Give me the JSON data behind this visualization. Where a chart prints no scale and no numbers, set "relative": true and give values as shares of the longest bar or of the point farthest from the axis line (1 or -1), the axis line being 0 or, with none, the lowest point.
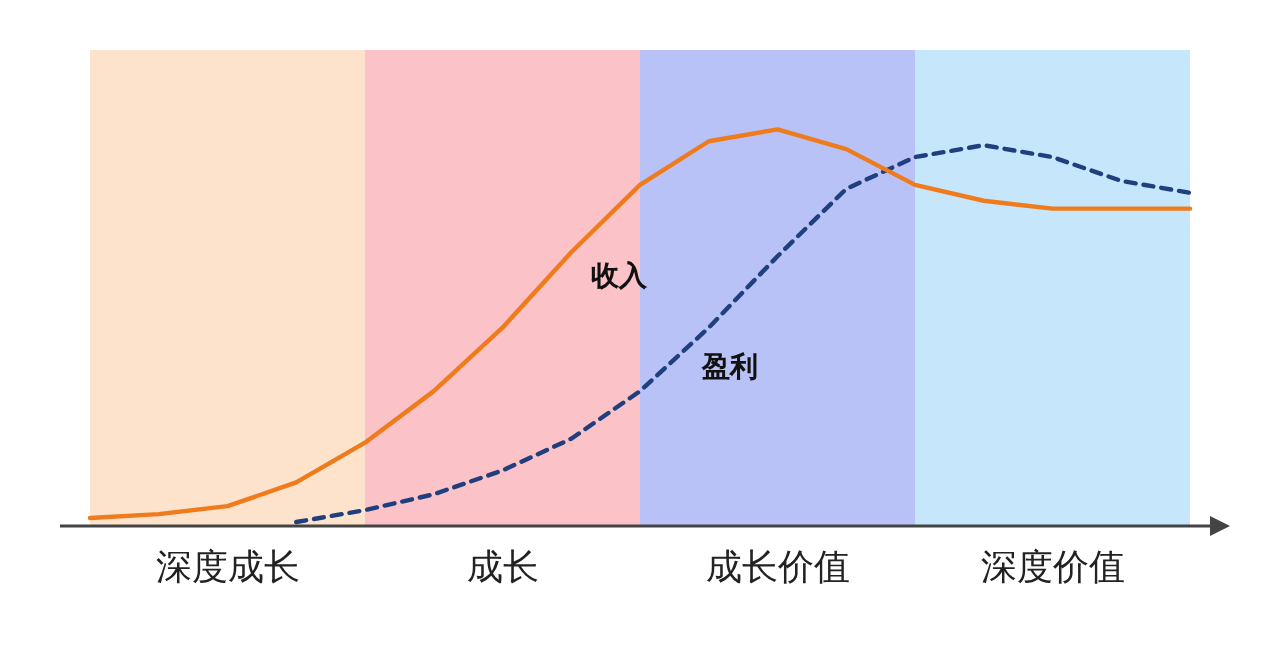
{
  "chart_data": {
    "type": "line",
    "relative": true,
    "legend": false,
    "marker": "none",
    "categories": [
      null,
      null,
      null,
      null,
      null,
      null,
      null,
      null,
      null,
      null,
      null,
      null,
      null,
      null,
      null,
      null,
      null
    ],
    "annotations": [
      "深度成长",
      "成长",
      "成长价值",
      "深度价值"
    ],
    "series": [
      {
        "name": "收入",
        "color": "#f07b1c",
        "line_style": "solid",
        "values": [
          0.02,
          0.03,
          0.05,
          0.11,
          0.21,
          0.34,
          0.5,
          0.69,
          0.86,
          0.97,
          1,
          0.95,
          0.86,
          0.82,
          0.8,
          0.8,
          0.8
        ]
      },
      {
        "name": "盈利",
        "color": "#1f3f7f",
        "line_style": "dashed",
        "values": [
          null,
          null,
          null,
          0.01,
          0.04,
          0.08,
          0.14,
          0.22,
          0.34,
          0.5,
          0.68,
          0.85,
          0.93,
          0.96,
          0.93,
          0.87,
          0.84
        ]
      }
    ]
  }
}
